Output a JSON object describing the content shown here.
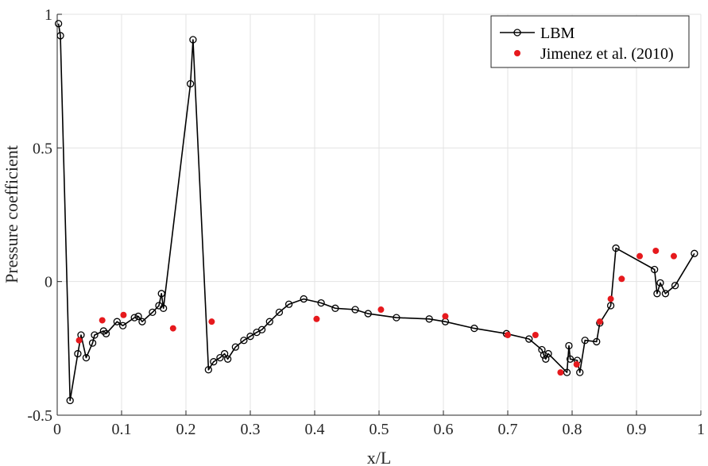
{
  "chart_data": {
    "type": "line",
    "xlabel": "x/L",
    "ylabel": "Pressure coefficient",
    "xlim": [
      0,
      1
    ],
    "ylim": [
      -0.5,
      1
    ],
    "xticks": [
      0,
      0.1,
      0.2,
      0.3,
      0.4,
      0.5,
      0.6,
      0.7,
      0.8,
      0.9,
      1
    ],
    "xtick_labels": [
      "0",
      "0.1",
      "0.2",
      "0.3",
      "0.4",
      "0.5",
      "0.6",
      "0.7",
      "0.8",
      "0.9",
      "1"
    ],
    "yticks": [
      -0.5,
      0,
      0.5,
      1
    ],
    "ytick_labels": [
      "-0.5",
      "0",
      "0.5",
      "1"
    ],
    "grid": true,
    "legend_position": "top-right",
    "series": [
      {
        "name": "LBM",
        "style": "line-with-open-circles",
        "color": "#000000",
        "x": [
          0.002,
          0.005,
          0.02,
          0.032,
          0.037,
          0.045,
          0.055,
          0.058,
          0.072,
          0.076,
          0.093,
          0.102,
          0.12,
          0.126,
          0.132,
          0.148,
          0.158,
          0.162,
          0.165,
          0.207,
          0.211,
          0.235,
          0.243,
          0.253,
          0.26,
          0.265,
          0.277,
          0.29,
          0.3,
          0.31,
          0.318,
          0.33,
          0.345,
          0.36,
          0.383,
          0.41,
          0.432,
          0.463,
          0.483,
          0.527,
          0.578,
          0.603,
          0.648,
          0.698,
          0.733,
          0.753,
          0.756,
          0.759,
          0.763,
          0.792,
          0.795,
          0.797,
          0.808,
          0.812,
          0.82,
          0.838,
          0.843,
          0.86,
          0.868,
          0.928,
          0.932,
          0.937,
          0.945,
          0.96,
          0.99
        ],
        "y": [
          0.965,
          0.92,
          -0.445,
          -0.27,
          -0.2,
          -0.285,
          -0.23,
          -0.2,
          -0.185,
          -0.195,
          -0.15,
          -0.165,
          -0.135,
          -0.13,
          -0.15,
          -0.115,
          -0.09,
          -0.045,
          -0.1,
          0.74,
          0.905,
          -0.33,
          -0.3,
          -0.285,
          -0.27,
          -0.29,
          -0.245,
          -0.22,
          -0.205,
          -0.19,
          -0.18,
          -0.15,
          -0.115,
          -0.085,
          -0.065,
          -0.08,
          -0.1,
          -0.105,
          -0.12,
          -0.135,
          -0.14,
          -0.15,
          -0.175,
          -0.195,
          -0.215,
          -0.255,
          -0.275,
          -0.29,
          -0.27,
          -0.34,
          -0.24,
          -0.29,
          -0.295,
          -0.34,
          -0.22,
          -0.225,
          -0.155,
          -0.09,
          0.125,
          0.045,
          -0.045,
          -0.005,
          -0.045,
          -0.015,
          0.105
        ]
      },
      {
        "name": "Jimenez et al. (2010)",
        "style": "markers",
        "color": "#e6191d",
        "x": [
          0.034,
          0.07,
          0.103,
          0.18,
          0.24,
          0.403,
          0.503,
          0.603,
          0.7,
          0.743,
          0.782,
          0.807,
          0.843,
          0.86,
          0.877,
          0.905,
          0.93,
          0.958
        ],
        "y": [
          -0.22,
          -0.145,
          -0.125,
          -0.175,
          -0.15,
          -0.14,
          -0.105,
          -0.13,
          -0.2,
          -0.2,
          -0.34,
          -0.31,
          -0.15,
          -0.065,
          0.01,
          0.095,
          0.115,
          0.095
        ]
      }
    ]
  }
}
